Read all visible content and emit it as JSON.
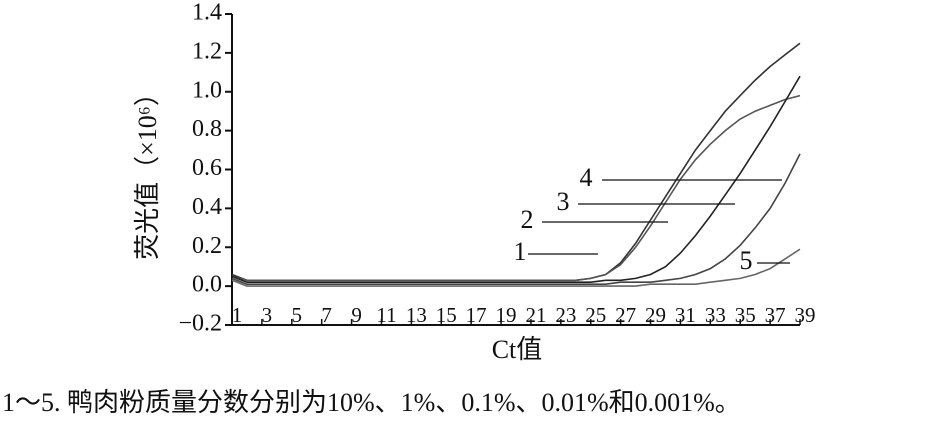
{
  "chart_data": {
    "type": "line",
    "y_label": "荧光值（×10⁶）",
    "x_label": "Ct值",
    "caption": "1～5. 鸭肉粉质量分数分别为10%、1%、0.1%、0.01%和0.001%。",
    "x": [
      1,
      2,
      3,
      5,
      9,
      13,
      17,
      21,
      23,
      24,
      25,
      26,
      27,
      28,
      29,
      30,
      31,
      32,
      33,
      34,
      35,
      36,
      37,
      38,
      39
    ],
    "series": [
      {
        "name": "1",
        "color": "#333333",
        "values": [
          0.06,
          0.03,
          0.03,
          0.03,
          0.03,
          0.03,
          0.03,
          0.03,
          0.03,
          0.03,
          0.04,
          0.06,
          0.12,
          0.22,
          0.34,
          0.46,
          0.58,
          0.7,
          0.8,
          0.9,
          0.98,
          1.06,
          1.13,
          1.19,
          1.25
        ]
      },
      {
        "name": "2",
        "color": "#555555",
        "values": [
          0.05,
          0.03,
          0.03,
          0.03,
          0.03,
          0.03,
          0.03,
          0.03,
          0.03,
          0.03,
          0.04,
          0.06,
          0.11,
          0.2,
          0.31,
          0.43,
          0.55,
          0.65,
          0.73,
          0.8,
          0.86,
          0.9,
          0.93,
          0.96,
          0.98
        ]
      },
      {
        "name": "3",
        "color": "#222222",
        "values": [
          0.05,
          0.02,
          0.02,
          0.02,
          0.02,
          0.02,
          0.02,
          0.02,
          0.02,
          0.02,
          0.02,
          0.03,
          0.03,
          0.04,
          0.06,
          0.1,
          0.17,
          0.26,
          0.36,
          0.47,
          0.58,
          0.7,
          0.82,
          0.95,
          1.08
        ]
      },
      {
        "name": "4",
        "color": "#444444",
        "values": [
          0.04,
          0.01,
          0.01,
          0.01,
          0.01,
          0.01,
          0.01,
          0.01,
          0.01,
          0.01,
          0.01,
          0.01,
          0.02,
          0.02,
          0.02,
          0.03,
          0.04,
          0.06,
          0.09,
          0.14,
          0.21,
          0.3,
          0.4,
          0.53,
          0.68
        ]
      },
      {
        "name": "5",
        "color": "#666666",
        "values": [
          0.03,
          0,
          0,
          0,
          0,
          0,
          0,
          0,
          0,
          0,
          0,
          0,
          0,
          0,
          0.01,
          0.01,
          0.01,
          0.01,
          0.02,
          0.03,
          0.04,
          0.06,
          0.09,
          0.14,
          0.19
        ]
      }
    ],
    "xlim": [
      1,
      39
    ],
    "xticks": [
      1,
      3,
      5,
      7,
      9,
      11,
      13,
      15,
      17,
      19,
      21,
      23,
      25,
      27,
      29,
      31,
      33,
      35,
      37,
      39
    ],
    "ylim": [
      -0.2,
      1.4
    ],
    "yticks": [
      {
        "value": -0.2,
        "label": "−0.2"
      },
      {
        "value": 0,
        "label": "0.0"
      },
      0.2,
      0.4,
      0.6,
      0.8,
      {
        "value": 1,
        "label": "1.0"
      },
      1.2,
      1.4
    ]
  }
}
